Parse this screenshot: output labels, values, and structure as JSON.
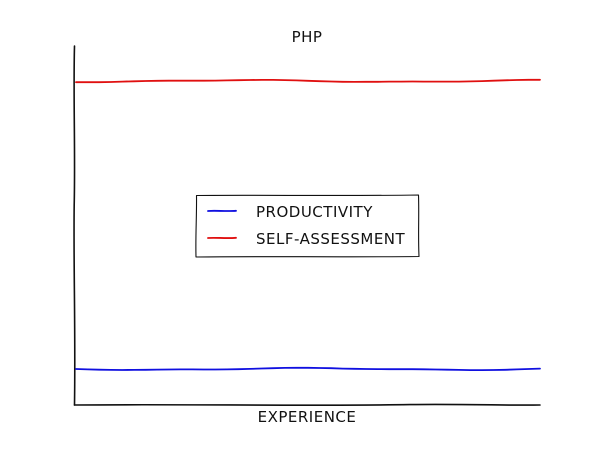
{
  "chart_data": {
    "type": "line",
    "title": "PHP",
    "xlabel": "EXPERIENCE",
    "ylabel": "",
    "x": [
      0,
      1
    ],
    "xlim": [
      0,
      1
    ],
    "ylim": [
      0,
      1
    ],
    "grid": false,
    "legend_position": "center",
    "series": [
      {
        "name": "PRODUCTIVITY",
        "color": "#1010e0",
        "values": [
          0.1,
          0.1
        ]
      },
      {
        "name": "SELF-ASSESSMENT",
        "color": "#e01010",
        "values": [
          0.9,
          0.9
        ]
      }
    ]
  }
}
